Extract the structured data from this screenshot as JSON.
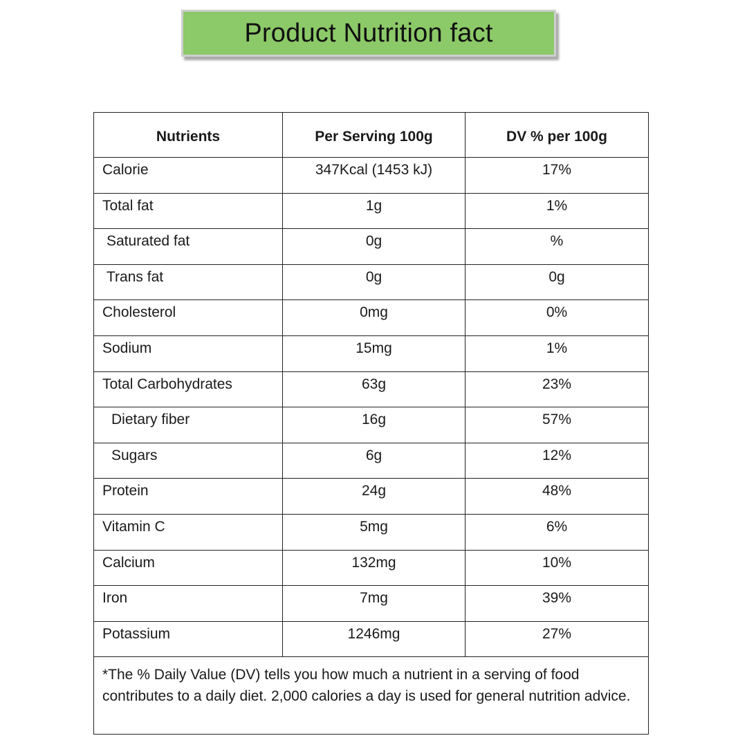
{
  "title": "Product Nutrition fact",
  "table": {
    "headers": [
      "Nutrients",
      "Per Serving 100g",
      "DV % per 100g"
    ],
    "rows": [
      {
        "nutrient": "Calorie",
        "per_serving": "347Kcal (1453 kJ)",
        "dv": "17%",
        "indent": 0
      },
      {
        "nutrient": "Total fat",
        "per_serving": "1g",
        "dv": "1%",
        "indent": 0
      },
      {
        "nutrient": "Saturated fat",
        "per_serving": "0g",
        "dv": "%",
        "indent": 1
      },
      {
        "nutrient": "Trans fat",
        "per_serving": "0g",
        "dv": "0g",
        "indent": 1
      },
      {
        "nutrient": "Cholesterol",
        "per_serving": "0mg",
        "dv": "0%",
        "indent": 0
      },
      {
        "nutrient": "Sodium",
        "per_serving": "15mg",
        "dv": "1%",
        "indent": 0
      },
      {
        "nutrient": "Total Carbohydrates",
        "per_serving": "63g",
        "dv": "23%",
        "indent": 0
      },
      {
        "nutrient": "Dietary fiber",
        "per_serving": "16g",
        "dv": "57%",
        "indent": 2
      },
      {
        "nutrient": "Sugars",
        "per_serving": "6g",
        "dv": "12%",
        "indent": 2
      },
      {
        "nutrient": "Protein",
        "per_serving": "24g",
        "dv": "48%",
        "indent": 0
      },
      {
        "nutrient": "Vitamin C",
        "per_serving": "5mg",
        "dv": "6%",
        "indent": 0
      },
      {
        "nutrient": "Calcium",
        "per_serving": "132mg",
        "dv": "10%",
        "indent": 0
      },
      {
        "nutrient": "Iron",
        "per_serving": "7mg",
        "dv": "39%",
        "indent": 0
      },
      {
        "nutrient": "Potassium",
        "per_serving": "1246mg",
        "dv": "27%",
        "indent": 0
      }
    ],
    "footnote": "*The % Daily Value (DV) tells you how much a nutrient in a serving of food contributes to a daily diet. 2,000 calories a day is used for general nutrition advice."
  },
  "colors": {
    "banner_fill": "#8cc968",
    "banner_border": "#cfcfcf",
    "table_border": "#222222"
  }
}
